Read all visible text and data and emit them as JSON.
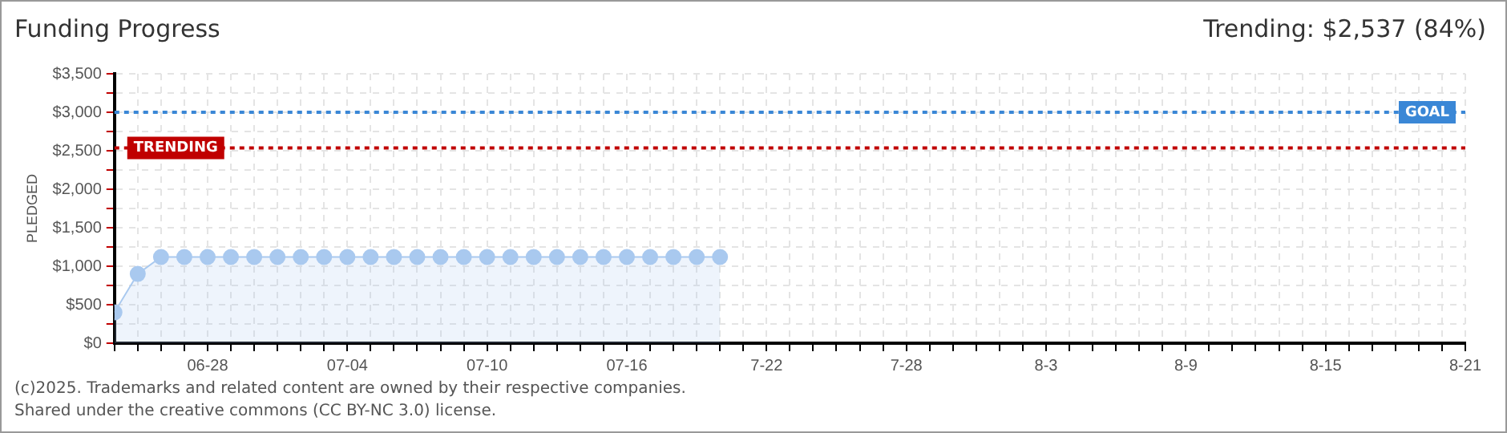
{
  "chart_data": {
    "type": "area",
    "title": "Funding Progress",
    "ylabel": "PLEDGED",
    "annotations": [
      "Trending: $2,537 (84%)",
      "(c)2025. Trademarks and related content are owned by their respective companies.",
      "Shared under the creative commons (CC BY-NC 3.0) license."
    ],
    "x": [
      "--06-24",
      "--06-25",
      "--06-26",
      "--06-27",
      "--06-28",
      "--06-29",
      "--06-30",
      "--07-01",
      "--07-02",
      "--07-03",
      "--07-04",
      "--07-05",
      "--07-06",
      "--07-07",
      "--07-08",
      "--07-09",
      "--07-10",
      "--07-11",
      "--07-12",
      "--07-13",
      "--07-14",
      "--07-15",
      "--07-16",
      "--07-17",
      "--07-18",
      "--07-19",
      "--07-20"
    ],
    "series": [
      {
        "color": "#a9c9ef",
        "values": [
          400,
          900,
          1120,
          1120,
          1120,
          1120,
          1120,
          1120,
          1120,
          1120,
          1120,
          1120,
          1120,
          1120,
          1120,
          1120,
          1120,
          1120,
          1120,
          1120,
          1120,
          1120,
          1120,
          1120,
          1120,
          1120,
          1120
        ]
      }
    ],
    "xlim": [
      "--06-24",
      "--08-21"
    ],
    "xticks": [
      {
        "value": "--06-24",
        "label": null
      },
      {
        "value": "--06-25",
        "label": null
      },
      {
        "value": "--06-26",
        "label": null
      },
      {
        "value": "--06-27",
        "label": null
      },
      {
        "value": "--06-28",
        "label": "06-28"
      },
      {
        "value": "--06-29",
        "label": null
      },
      {
        "value": "--06-30",
        "label": null
      },
      {
        "value": "--07-01",
        "label": null
      },
      {
        "value": "--07-02",
        "label": null
      },
      {
        "value": "--07-03",
        "label": null
      },
      {
        "value": "--07-04",
        "label": "07-04"
      },
      {
        "value": "--07-05",
        "label": null
      },
      {
        "value": "--07-06",
        "label": null
      },
      {
        "value": "--07-07",
        "label": null
      },
      {
        "value": "--07-08",
        "label": null
      },
      {
        "value": "--07-09",
        "label": null
      },
      {
        "value": "--07-10",
        "label": "07-10"
      },
      {
        "value": "--07-11",
        "label": null
      },
      {
        "value": "--07-12",
        "label": null
      },
      {
        "value": "--07-13",
        "label": null
      },
      {
        "value": "--07-14",
        "label": null
      },
      {
        "value": "--07-15",
        "label": null
      },
      {
        "value": "--07-16",
        "label": "07-16"
      },
      {
        "value": "--07-17",
        "label": null
      },
      {
        "value": "--07-18",
        "label": null
      },
      {
        "value": "--07-19",
        "label": null
      },
      {
        "value": "--07-20",
        "label": null
      },
      {
        "value": "--07-21",
        "label": null
      },
      {
        "value": "--07-22",
        "label": "7-22"
      },
      {
        "value": "--07-23",
        "label": null
      },
      {
        "value": "--07-24",
        "label": null
      },
      {
        "value": "--07-25",
        "label": null
      },
      {
        "value": "--07-26",
        "label": null
      },
      {
        "value": "--07-27",
        "label": null
      },
      {
        "value": "--07-28",
        "label": "7-28"
      },
      {
        "value": "--07-29",
        "label": null
      },
      {
        "value": "--07-30",
        "label": null
      },
      {
        "value": "--07-31",
        "label": null
      },
      {
        "value": "--08-01",
        "label": null
      },
      {
        "value": "--08-02",
        "label": null
      },
      {
        "value": "--08-03",
        "label": "8-3"
      },
      {
        "value": "--08-04",
        "label": null
      },
      {
        "value": "--08-05",
        "label": null
      },
      {
        "value": "--08-06",
        "label": null
      },
      {
        "value": "--08-07",
        "label": null
      },
      {
        "value": "--08-08",
        "label": null
      },
      {
        "value": "--08-09",
        "label": "8-9"
      },
      {
        "value": "--08-10",
        "label": null
      },
      {
        "value": "--08-11",
        "label": null
      },
      {
        "value": "--08-12",
        "label": null
      },
      {
        "value": "--08-13",
        "label": null
      },
      {
        "value": "--08-14",
        "label": null
      },
      {
        "value": "--08-15",
        "label": "8-15"
      },
      {
        "value": "--08-16",
        "label": null
      },
      {
        "value": "--08-17",
        "label": null
      },
      {
        "value": "--08-18",
        "label": null
      },
      {
        "value": "--08-19",
        "label": null
      },
      {
        "value": "--08-20",
        "label": null
      },
      {
        "value": "--08-21",
        "label": "8-21"
      }
    ],
    "ylim": [
      0,
      3500
    ],
    "yticks": [
      {
        "value": 0,
        "label": "$0"
      },
      {
        "value": 250,
        "label": null
      },
      {
        "value": 500,
        "label": "$500"
      },
      {
        "value": 750,
        "label": null
      },
      {
        "value": 1000,
        "label": "$1,000"
      },
      {
        "value": 1250,
        "label": null
      },
      {
        "value": 1500,
        "label": "$1,500"
      },
      {
        "value": 1750,
        "label": null
      },
      {
        "value": 2000,
        "label": "$2,000"
      },
      {
        "value": 2250,
        "label": null
      },
      {
        "value": 2500,
        "label": "$2,500"
      },
      {
        "value": 2750,
        "label": null
      },
      {
        "value": 3000,
        "label": "$3,000"
      },
      {
        "value": 3250,
        "label": null
      },
      {
        "value": 3500,
        "label": "$3,500"
      }
    ],
    "ref_lines": [
      {
        "axis": "y",
        "value": 3000,
        "label": "GOAL",
        "color": "#3a87d6",
        "line_style": "dotted"
      },
      {
        "axis": "y",
        "value": 2537,
        "label": "TRENDING",
        "color": "#c00000",
        "line_style": "dotted"
      }
    ],
    "grid": true,
    "legend": false,
    "marker": "circle",
    "line_style": "solid"
  }
}
